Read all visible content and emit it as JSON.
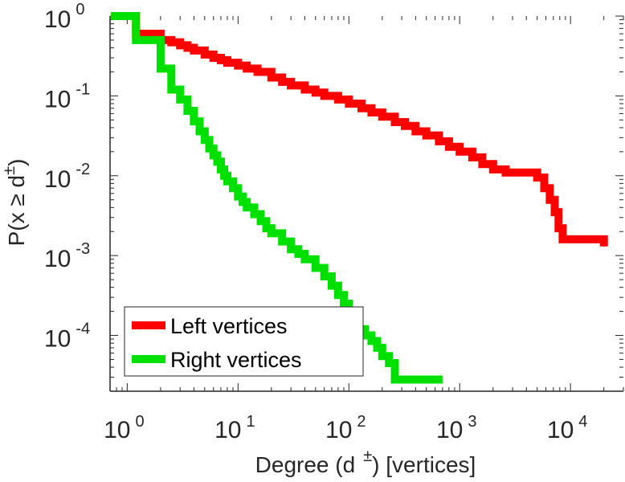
{
  "chart_data": {
    "type": "line",
    "style": "step",
    "xscale": "log",
    "yscale": "log",
    "xlim": [
      0.7,
      30000
    ],
    "ylim": [
      2e-05,
      1.0
    ],
    "xlabel_text": "Degree (d",
    "xlabel_sup": "±",
    "xlabel_suffix": ") [vertices]",
    "ylabel_text": "P(x ≥ d",
    "ylabel_sup": "±",
    "ylabel_suffix": ")",
    "xticks": [
      {
        "value": 1,
        "base": "10",
        "exp": "0"
      },
      {
        "value": 10,
        "base": "10",
        "exp": "1"
      },
      {
        "value": 100,
        "base": "10",
        "exp": "2"
      },
      {
        "value": 1000,
        "base": "10",
        "exp": "3"
      },
      {
        "value": 10000,
        "base": "10",
        "exp": "4"
      }
    ],
    "yticks": [
      {
        "value": 1,
        "base": "10",
        "exp": "0"
      },
      {
        "value": 0.1,
        "base": "10",
        "exp": "-1"
      },
      {
        "value": 0.01,
        "base": "10",
        "exp": "-2"
      },
      {
        "value": 0.001,
        "base": "10",
        "exp": "-3"
      },
      {
        "value": 0.0001,
        "base": "10",
        "exp": "-4"
      }
    ],
    "legend_position": "bottom-left",
    "series": [
      {
        "name": "Left vertices",
        "color": "#ff0000",
        "x": [
          1,
          1.2,
          2,
          2.5,
          3,
          3.5,
          4,
          5,
          6,
          7,
          8,
          10,
          12,
          15,
          20,
          25,
          30,
          40,
          50,
          60,
          80,
          100,
          130,
          160,
          200,
          260,
          320,
          400,
          500,
          650,
          800,
          1000,
          1300,
          1600,
          2000,
          2600,
          3300,
          4000,
          5000,
          5800,
          6500,
          7200,
          7800,
          8500,
          20000
        ],
        "y": [
          1.0,
          0.6,
          0.5,
          0.47,
          0.43,
          0.4,
          0.37,
          0.33,
          0.3,
          0.28,
          0.26,
          0.24,
          0.22,
          0.2,
          0.17,
          0.15,
          0.135,
          0.12,
          0.11,
          0.1,
          0.09,
          0.08,
          0.07,
          0.062,
          0.055,
          0.047,
          0.042,
          0.036,
          0.032,
          0.027,
          0.023,
          0.02,
          0.017,
          0.014,
          0.012,
          0.011,
          0.011,
          0.011,
          0.0095,
          0.007,
          0.005,
          0.0035,
          0.0022,
          0.0016,
          0.0013
        ]
      },
      {
        "name": "Right vertices",
        "color": "#00e000",
        "x": [
          1,
          1.2,
          2,
          2.5,
          3,
          3.5,
          4,
          4.5,
          5,
          5.5,
          6,
          6.5,
          7,
          7.5,
          8,
          9,
          10,
          11,
          12,
          14,
          16,
          18,
          20,
          25,
          30,
          35,
          40,
          50,
          60,
          70,
          80,
          90,
          100,
          110,
          120,
          140,
          160,
          180,
          200,
          230,
          260,
          700
        ],
        "y": [
          1.0,
          0.5,
          0.22,
          0.12,
          0.09,
          0.065,
          0.048,
          0.036,
          0.028,
          0.022,
          0.018,
          0.015,
          0.012,
          0.01,
          0.0085,
          0.007,
          0.0055,
          0.0047,
          0.004,
          0.0033,
          0.0027,
          0.0022,
          0.0019,
          0.0015,
          0.0012,
          0.00105,
          0.0009,
          0.0007,
          0.00055,
          0.00042,
          0.00032,
          0.00025,
          0.00019,
          0.00015,
          0.00012,
          0.0001,
          8.5e-05,
          7e-05,
          5.5e-05,
          4.5e-05,
          2.8e-05,
          2.8e-05
        ]
      }
    ]
  }
}
